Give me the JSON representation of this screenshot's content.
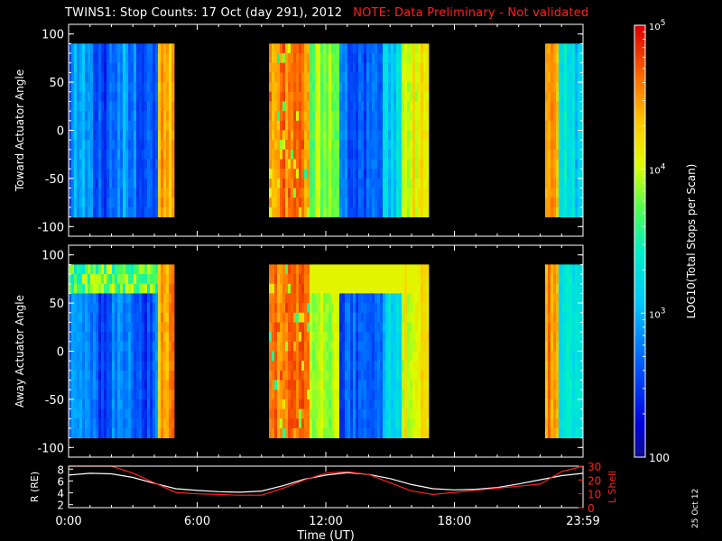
{
  "header": {
    "title": "TWINS1: Stop Counts: 17 Oct (day 291), 2012",
    "note": "NOTE: Data Preliminary - Not validated"
  },
  "date_stamp": "25 Oct 12",
  "colors": {
    "background": "#000000",
    "axes": "#ffffff",
    "note": "#ff2020",
    "lshell_line": "#ff2020",
    "r_line": "#ffffff"
  },
  "chart_data": [
    {
      "type": "heatmap",
      "panel": "top",
      "ylabel": "Toward Actuator Angle",
      "ylim": [
        -110,
        110
      ],
      "yticks": [
        "100",
        "50",
        "0",
        "-50",
        "-100"
      ],
      "y_range_covered": [
        -90,
        90
      ],
      "segments": [
        {
          "start_h": 0.0,
          "end_h": 4.9,
          "level": "low (~200-600)",
          "end_level": "high (~2e4-6e4)"
        },
        {
          "start_h": 9.3,
          "end_h": 16.8,
          "level": "high (~2e4-8e4) then low (~200-500)",
          "end_level": "mid-high"
        },
        {
          "start_h": 22.2,
          "end_h": 24.0,
          "level": "high then low (~500-1500)"
        }
      ],
      "data_gaps": [
        [
          4.9,
          9.3
        ],
        [
          16.8,
          22.2
        ]
      ]
    },
    {
      "type": "heatmap",
      "panel": "middle",
      "ylabel": "Away Actuator Angle",
      "ylim": [
        -110,
        110
      ],
      "yticks": [
        "100",
        "50",
        "0",
        "-50",
        "-100"
      ],
      "y_range_covered": [
        -90,
        90
      ],
      "segments": [
        {
          "start_h": 0.0,
          "end_h": 4.9,
          "level": "low (~200-600), band near 75-90 deg ~1e3-5e3",
          "end_level": "high"
        },
        {
          "start_h": 9.3,
          "end_h": 16.8,
          "level": "high (~2e4-8e4) then low (~200-500)",
          "end_level": "mid-high"
        },
        {
          "start_h": 22.2,
          "end_h": 24.0,
          "level": "high then low"
        }
      ],
      "data_gaps": [
        [
          4.9,
          9.3
        ],
        [
          16.8,
          22.2
        ]
      ]
    },
    {
      "type": "line",
      "panel": "bottom",
      "xlabel": "Time (UT)",
      "xticks": [
        "0:00",
        "6:00",
        "12:00",
        "18:00",
        "23:59"
      ],
      "xlim": [
        0,
        24
      ],
      "y_left": {
        "label": "R (RE)",
        "ylim": [
          1.5,
          8.5
        ],
        "ticks": [
          "8",
          "6",
          "4",
          "2"
        ]
      },
      "y_right": {
        "label": "L Shell",
        "ylim": [
          0,
          30
        ],
        "ticks": [
          "30",
          "20",
          "10",
          "0"
        ]
      },
      "series": [
        {
          "axis": "left",
          "color": "#ffffff",
          "x": [
            0,
            1,
            2,
            3,
            4,
            5,
            6,
            7,
            8,
            9,
            10,
            11,
            12,
            13,
            14,
            15,
            16,
            17,
            18,
            19,
            20,
            21,
            22,
            23,
            24
          ],
          "values": [
            7.0,
            7.3,
            7.2,
            6.6,
            5.6,
            4.7,
            4.4,
            4.2,
            4.1,
            4.3,
            5.2,
            6.3,
            7.0,
            7.4,
            7.1,
            6.4,
            5.4,
            4.7,
            4.5,
            4.6,
            4.9,
            5.5,
            6.2,
            6.9,
            7.3
          ]
        },
        {
          "axis": "right",
          "color": "#ff2020",
          "x": [
            0,
            1,
            2,
            3,
            4,
            5,
            6,
            7,
            8,
            9,
            10,
            11,
            12,
            13,
            14,
            15,
            16,
            17,
            18,
            19,
            20,
            21,
            22,
            23,
            24
          ],
          "values": [
            30,
            30,
            30,
            25,
            18,
            11,
            10,
            9.5,
            9,
            9,
            14,
            20,
            25,
            26,
            24,
            18,
            12,
            9.5,
            11,
            12.5,
            14,
            15.5,
            17,
            26,
            30
          ]
        }
      ]
    }
  ],
  "colorbar": {
    "label": "LOG10(Total Stops per Scan)",
    "min": 100,
    "max": 100000,
    "tick_labels": [
      "10^5",
      "10^4",
      "10^3",
      "100"
    ],
    "tick_values": [
      100000,
      10000,
      1000,
      100
    ]
  }
}
